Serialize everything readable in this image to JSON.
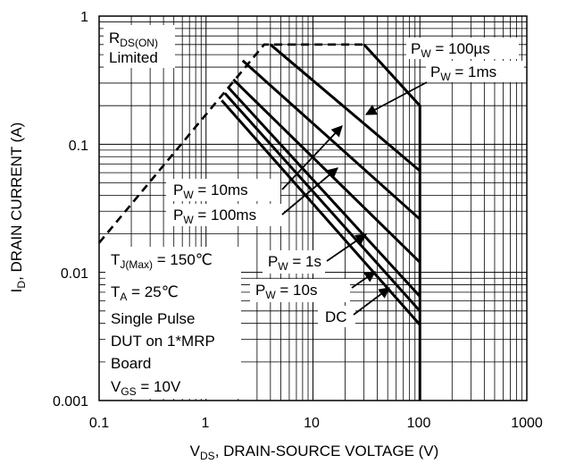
{
  "chart_data": {
    "type": "line",
    "scale": {
      "x": "log",
      "y": "log"
    },
    "xlim": [
      0.1,
      1000
    ],
    "ylim": [
      0.001,
      1
    ],
    "grid": true,
    "x_ticks": [
      "0.1",
      "1",
      "10",
      "100",
      "1000"
    ],
    "y_ticks": [
      "1",
      "0.1",
      "0.01",
      "0.001"
    ],
    "xlabel": {
      "main": "V",
      "sub": "DS",
      "rest": ", DRAIN-SOURCE VOLTAGE (V)"
    },
    "ylabel": {
      "main": "I",
      "sub": "D",
      "rest": ", DRAIN CURRENT (A)"
    },
    "limit_line": {
      "label_main": "R",
      "label_sub": "DS(ON)",
      "label_line2": "Limited",
      "points": [
        [
          0.1,
          0.017
        ],
        [
          3.5,
          0.6
        ],
        [
          30,
          0.6
        ]
      ]
    },
    "series": [
      {
        "name_main": "P",
        "name_sub": "W",
        "name_rest": " = 100µs",
        "points": [
          [
            30,
            0.6
          ],
          [
            100,
            0.2
          ],
          [
            100,
            0.001
          ]
        ]
      },
      {
        "name_main": "P",
        "name_sub": "W",
        "name_rest": " = 1ms",
        "points": [
          [
            4,
            0.6
          ],
          [
            100,
            0.062
          ]
        ]
      },
      {
        "name_main": "P",
        "name_sub": "W",
        "name_rest": " = 10ms",
        "points": [
          [
            2.2,
            0.45
          ],
          [
            100,
            0.026
          ]
        ]
      },
      {
        "name_main": "P",
        "name_sub": "W",
        "name_rest": " = 100ms",
        "points": [
          [
            1.8,
            0.32
          ],
          [
            100,
            0.012
          ]
        ]
      },
      {
        "name_main": "P",
        "name_sub": "W",
        "name_rest": " = 1s",
        "points": [
          [
            1.6,
            0.28
          ],
          [
            100,
            0.0065
          ]
        ]
      },
      {
        "name_main": "P",
        "name_sub": "W",
        "name_rest": " = 10s",
        "points": [
          [
            1.5,
            0.25
          ],
          [
            100,
            0.005
          ]
        ]
      },
      {
        "name_main": "DC",
        "name_sub": "",
        "name_rest": "",
        "points": [
          [
            1.4,
            0.22
          ],
          [
            100,
            0.0039
          ]
        ]
      }
    ],
    "conditions": [
      {
        "main": "T",
        "sub": "J(Max)",
        "rest": " = 150℃"
      },
      {
        "main": "T",
        "sub": "A",
        "rest": " = 25℃"
      },
      {
        "main": "Single Pulse",
        "sub": "",
        "rest": ""
      },
      {
        "main": "DUT on 1*MRP",
        "sub": "",
        "rest": ""
      },
      {
        "main": "Board",
        "sub": "",
        "rest": ""
      },
      {
        "main": "V",
        "sub": "GS",
        "rest": " = 10V"
      }
    ]
  }
}
